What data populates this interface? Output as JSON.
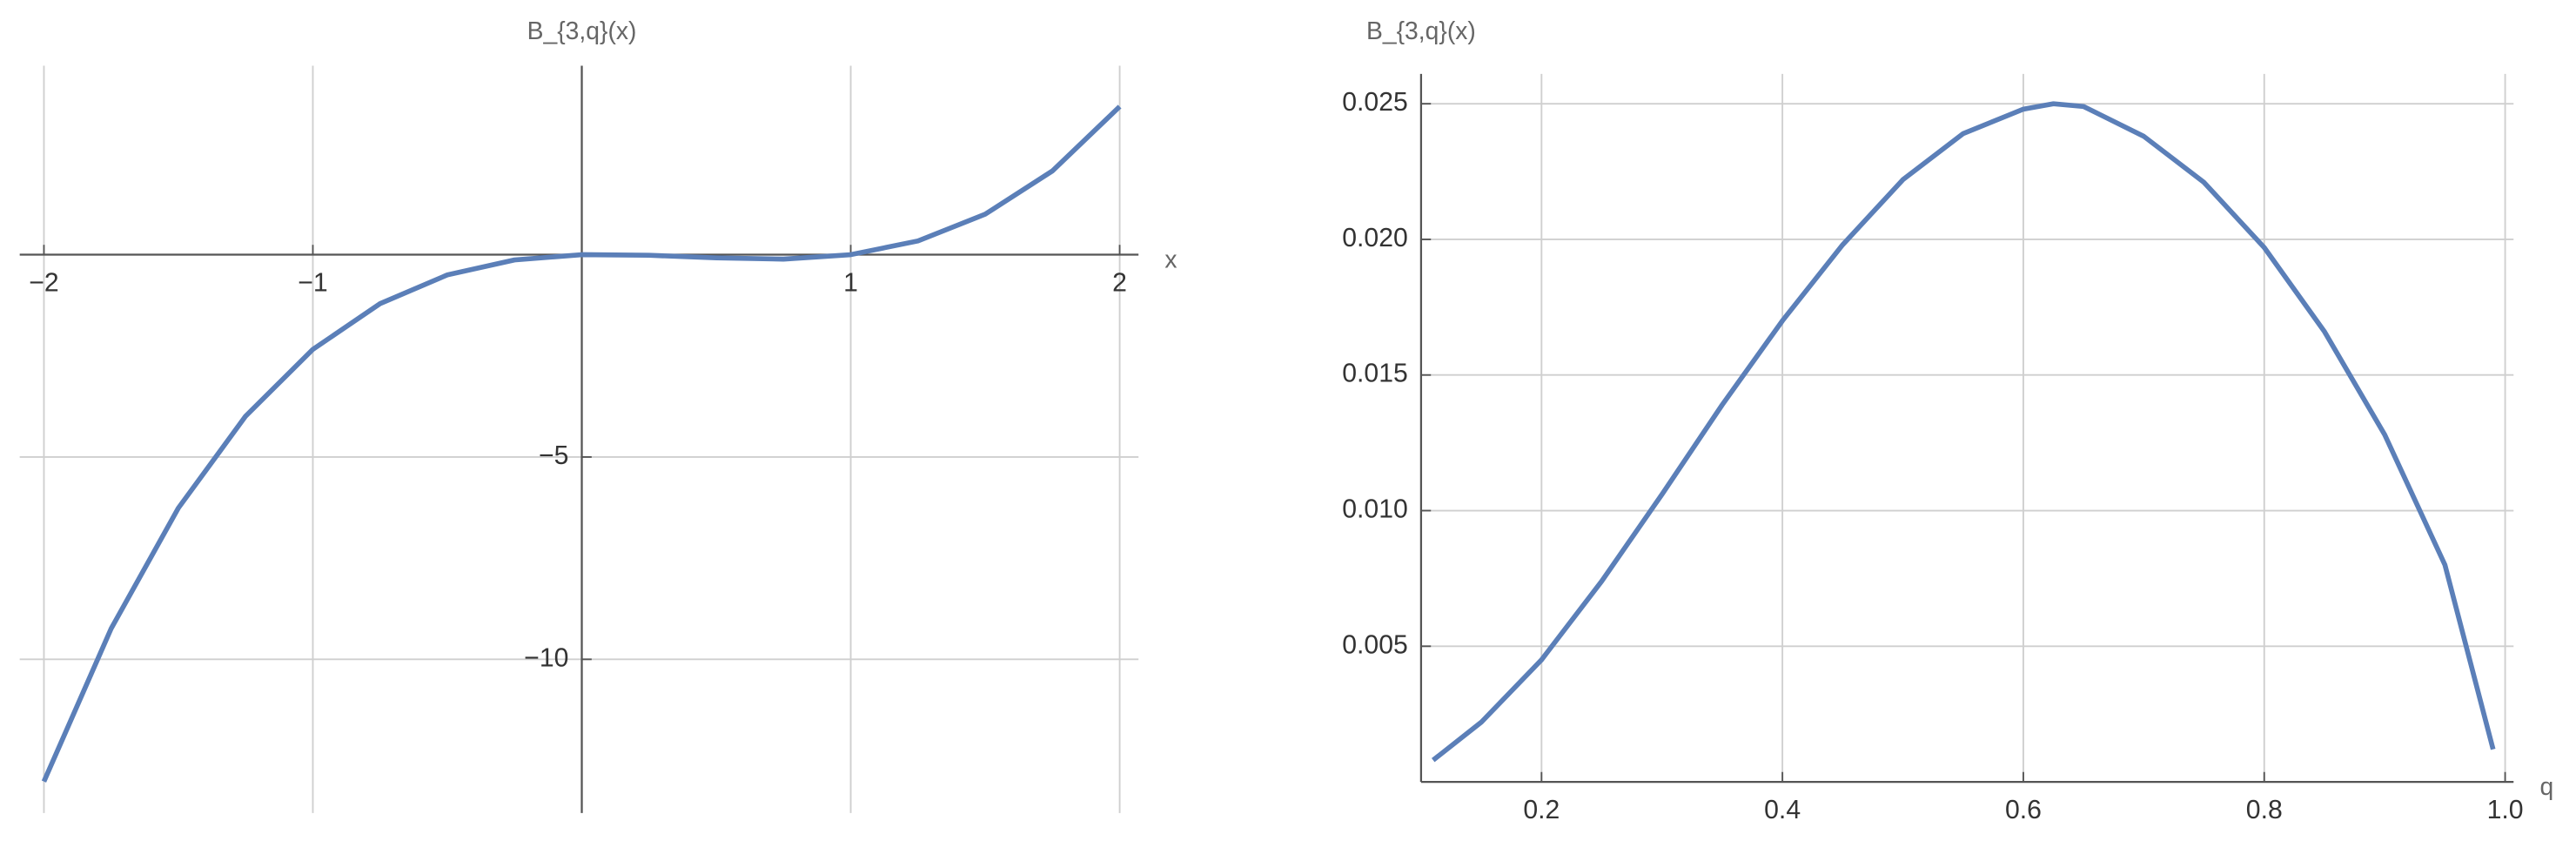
{
  "chart_data": [
    {
      "type": "line",
      "title": "B_{3,q}(x)",
      "x_label": "x",
      "x": [
        -2,
        -1.75,
        -1.5,
        -1.25,
        -1,
        -0.75,
        -0.5,
        -0.25,
        0,
        0.25,
        0.5,
        0.75,
        1,
        1.25,
        1.5,
        1.75,
        2
      ],
      "values": [
        -13.02,
        -9.24,
        -6.26,
        -3.99,
        -2.34,
        -1.21,
        -0.5,
        -0.13,
        0,
        -0.015,
        -0.08,
        -0.11,
        0,
        0.34,
        1.0,
        2.07,
        3.66
      ],
      "color": "#5b7fb8",
      "xlim": [
        -2.09,
        2.07
      ],
      "ylim": [
        -13.8,
        4.67
      ],
      "xticks": [
        {
          "value": -2,
          "label": "−2"
        },
        {
          "value": -1,
          "label": "−1"
        },
        1,
        2
      ],
      "yticks": [
        {
          "value": -5,
          "label": "−5"
        },
        {
          "value": -10,
          "label": "−10"
        }
      ],
      "grid": true
    },
    {
      "type": "line",
      "title": "B_{3,q}(x)",
      "x_label": "q",
      "x": [
        0.11,
        0.15,
        0.2,
        0.25,
        0.3,
        0.35,
        0.4,
        0.45,
        0.5,
        0.55,
        0.6,
        0.625,
        0.65,
        0.7,
        0.75,
        0.8,
        0.85,
        0.9,
        0.95,
        0.99
      ],
      "values": [
        0.0008,
        0.0022,
        0.0045,
        0.0074,
        0.0106,
        0.0139,
        0.017,
        0.0198,
        0.0222,
        0.0239,
        0.0248,
        0.025,
        0.0249,
        0.0238,
        0.0221,
        0.0197,
        0.0166,
        0.0128,
        0.008,
        0.0012
      ],
      "color": "#5b7fb8",
      "xlim": [
        0.1,
        1.007
      ],
      "ylim": [
        0,
        0.0261
      ],
      "xticks": [
        0.2,
        0.4,
        0.6,
        0.8,
        {
          "value": 1.0,
          "label": "1.0"
        }
      ],
      "yticks": [
        0.005,
        {
          "value": 0.01,
          "label": "0.010"
        },
        0.015,
        {
          "value": 0.02,
          "label": "0.020"
        },
        0.025
      ],
      "grid": true
    }
  ]
}
